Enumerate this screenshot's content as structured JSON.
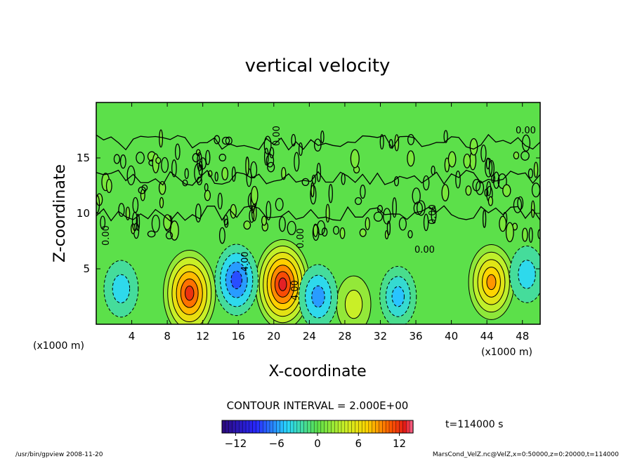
{
  "chart_data": {
    "type": "heatmap",
    "title": "vertical velocity",
    "xlabel": "X-coordinate",
    "ylabel": "Z-coordinate",
    "x_unit_left": "(x1000 m)",
    "x_unit_right": "(x1000 m)",
    "xlim": [
      0,
      50
    ],
    "ylim": [
      0,
      20
    ],
    "x_ticks": [
      4,
      8,
      12,
      16,
      20,
      24,
      28,
      32,
      36,
      40,
      44,
      48
    ],
    "y_ticks": [
      5,
      10,
      15
    ],
    "contour_interval_label": "CONTOUR INTERVAL = 2.000E+00",
    "time_label": "t=114000 s",
    "colorbar": {
      "min": -14,
      "max": 14,
      "ticks": [
        -12,
        -6,
        0,
        6,
        12
      ]
    },
    "contour_labels": [
      "0.00",
      "0.00",
      "0.00",
      "-4.00",
      "4.00",
      "0.00",
      "0.00",
      "0.00"
    ],
    "cells": [
      {
        "x": 10.5,
        "z": 2.8,
        "value": 12
      },
      {
        "x": 21.0,
        "z": 3.6,
        "value": 13
      },
      {
        "x": 44.5,
        "z": 3.8,
        "value": 9
      },
      {
        "x": 29.0,
        "z": 1.8,
        "value": 4
      },
      {
        "x": 15.8,
        "z": 4.0,
        "value": -8
      },
      {
        "x": 25.0,
        "z": 2.5,
        "value": -6
      },
      {
        "x": 34.0,
        "z": 2.5,
        "value": -5
      },
      {
        "x": 2.8,
        "z": 3.2,
        "value": -4
      },
      {
        "x": 48.5,
        "z": 4.5,
        "value": -4
      }
    ]
  },
  "footer": {
    "left": "/usr/bin/gpview   2008-11-20",
    "right": "MarsCond_VelZ.nc@VelZ,x=0:50000,z=0:20000,t=114000"
  }
}
